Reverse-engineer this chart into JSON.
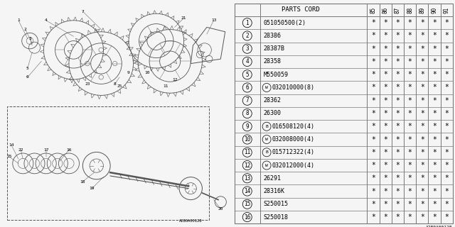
{
  "fig_width": 6.4,
  "fig_height": 3.2,
  "bg_color": "#f5f5f5",
  "diagram_bg": "#ffffff",
  "table_bg": "#ffffff",
  "line_color": "#555555",
  "text_color": "#000000",
  "table_line_color": "#777777",
  "star_char": "*",
  "ref_code": "A280A00128",
  "col_header": "PARTS CORD",
  "year_cols": [
    "85",
    "86",
    "87",
    "88",
    "89",
    "90",
    "91"
  ],
  "parts": [
    {
      "num": 1,
      "prefix": "",
      "code": "051050500(2)"
    },
    {
      "num": 2,
      "prefix": "",
      "code": "28386"
    },
    {
      "num": 3,
      "prefix": "",
      "code": "28387B"
    },
    {
      "num": 4,
      "prefix": "",
      "code": "28358"
    },
    {
      "num": 5,
      "prefix": "",
      "code": "M550059"
    },
    {
      "num": 6,
      "prefix": "W",
      "code": "032010000(8)"
    },
    {
      "num": 7,
      "prefix": "",
      "code": "28362"
    },
    {
      "num": 8,
      "prefix": "",
      "code": "26300"
    },
    {
      "num": 9,
      "prefix": "B",
      "code": "016508120(4)"
    },
    {
      "num": 10,
      "prefix": "W",
      "code": "032008000(4)"
    },
    {
      "num": 11,
      "prefix": "B",
      "code": "015712322(4)"
    },
    {
      "num": 12,
      "prefix": "W",
      "code": "032012000(4)"
    },
    {
      "num": 13,
      "prefix": "",
      "code": "26291"
    },
    {
      "num": 14,
      "prefix": "",
      "code": "28316K"
    },
    {
      "num": 15,
      "prefix": "",
      "code": "S250015"
    },
    {
      "num": 16,
      "prefix": "",
      "code": "S250018"
    }
  ],
  "diag_split": 0.505
}
